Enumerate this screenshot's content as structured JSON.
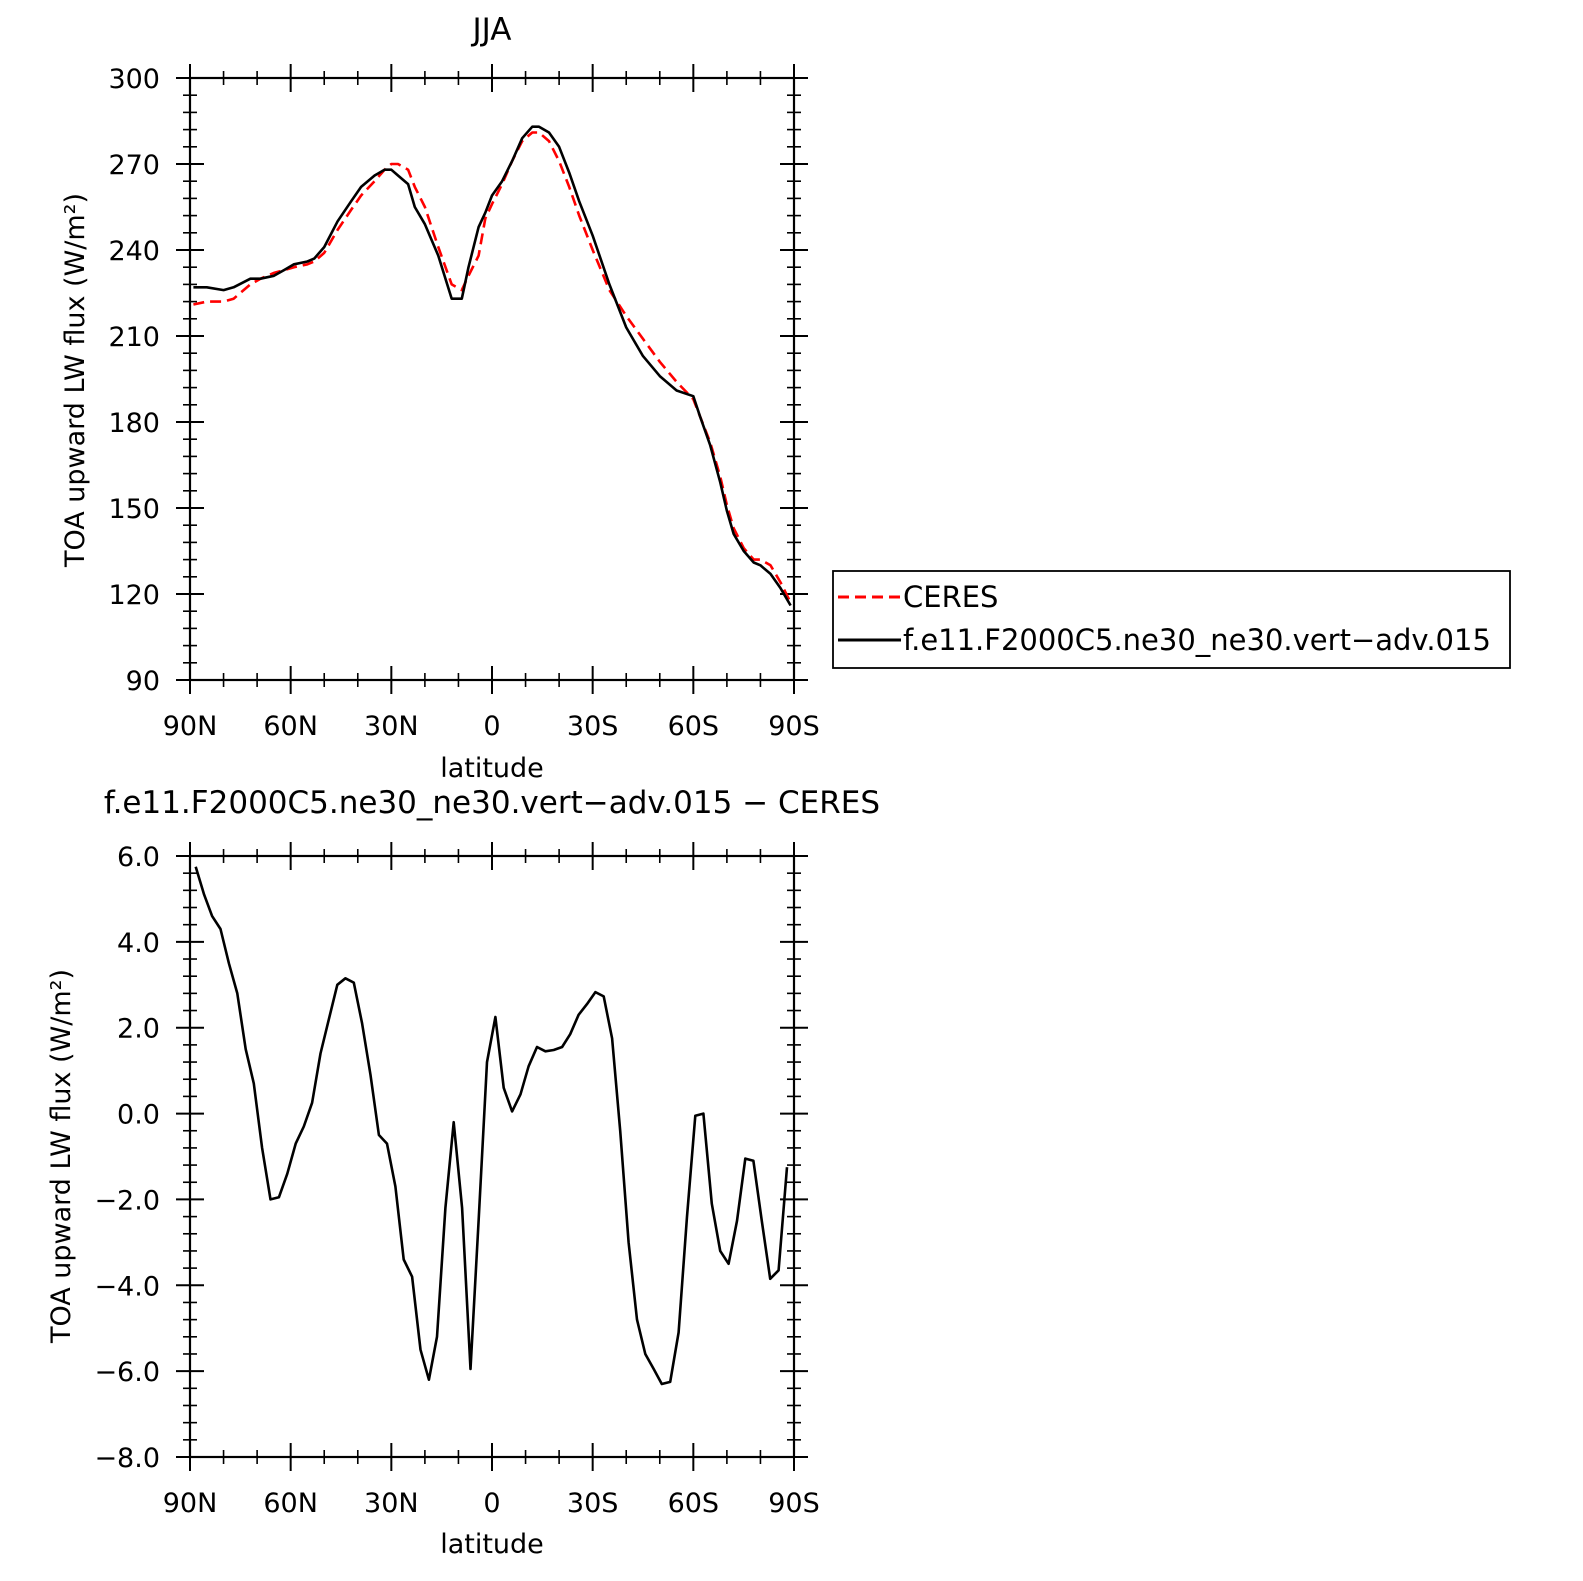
{
  "chart_data": [
    {
      "type": "line",
      "title": "JJA",
      "xlabel": "latitude",
      "ylabel": "TOA upward LW flux (W/m²)",
      "xlim": [
        90,
        -90
      ],
      "ylim": [
        90,
        300
      ],
      "x_ticks": [
        {
          "value": 90,
          "label": "90N"
        },
        {
          "value": 60,
          "label": "60N"
        },
        {
          "value": 30,
          "label": "30N"
        },
        {
          "value": 0,
          "label": "0"
        },
        {
          "value": -30,
          "label": "30S"
        },
        {
          "value": -60,
          "label": "60S"
        },
        {
          "value": -90,
          "label": "90S"
        }
      ],
      "y_ticks": [
        {
          "value": 300,
          "label": "300"
        },
        {
          "value": 270,
          "label": "270"
        },
        {
          "value": 240,
          "label": "240"
        },
        {
          "value": 210,
          "label": "210"
        },
        {
          "value": 180,
          "label": "180"
        },
        {
          "value": 150,
          "label": "150"
        },
        {
          "value": 120,
          "label": "120"
        },
        {
          "value": 90,
          "label": "90"
        }
      ],
      "legend": {
        "placement": "right"
      },
      "series": [
        {
          "name": "CERES",
          "color": "#ff0000",
          "style": "dashed",
          "x": [
            89,
            85,
            80,
            77,
            72,
            69,
            65,
            62,
            59,
            55,
            53,
            50,
            46,
            42,
            39,
            35,
            32,
            30,
            28,
            25,
            23,
            20,
            16,
            12,
            9,
            7,
            4,
            2,
            0,
            -3,
            -6,
            -9,
            -12,
            -14,
            -17,
            -20,
            -23,
            -26,
            -30,
            -35,
            -40,
            -45,
            -50,
            -55,
            -60,
            -62,
            -65,
            -68,
            -70,
            -72,
            -75,
            -78,
            -80,
            -83,
            -86,
            -89
          ],
          "y": [
            221,
            222,
            222,
            223,
            228,
            230,
            232,
            233,
            234,
            235,
            236,
            239,
            247,
            254,
            259,
            264,
            268,
            270,
            270,
            268,
            262,
            255,
            241,
            228,
            226,
            231,
            238,
            251,
            256,
            263,
            271,
            278,
            281,
            281,
            278,
            271,
            262,
            252,
            240,
            226,
            217,
            209,
            201,
            194,
            188,
            182,
            173,
            161,
            151,
            143,
            136,
            132,
            132,
            130,
            124,
            117
          ]
        },
        {
          "name": "f.e11.F2000C5.ne30_ne30.vert−adv.015",
          "color": "#000000",
          "style": "solid",
          "x": [
            89,
            85,
            80,
            77,
            72,
            69,
            65,
            62,
            59,
            55,
            53,
            50,
            46,
            42,
            39,
            35,
            32,
            30,
            28,
            25,
            23,
            20,
            16,
            12,
            9,
            7,
            4,
            2,
            0,
            -3,
            -6,
            -9,
            -12,
            -14,
            -17,
            -20,
            -23,
            -26,
            -30,
            -35,
            -40,
            -45,
            -50,
            -55,
            -60,
            -62,
            -65,
            -68,
            -70,
            -72,
            -75,
            -78,
            -80,
            -83,
            -86,
            -89
          ],
          "y": [
            227,
            227,
            226,
            227,
            230,
            230,
            231,
            233,
            235,
            236,
            237,
            241,
            250,
            257,
            262,
            266,
            268,
            268,
            266,
            263,
            255,
            249,
            238,
            223,
            223,
            234,
            248,
            253,
            259,
            264,
            271,
            279,
            283,
            283,
            281,
            276,
            267,
            257,
            245,
            228,
            213,
            203,
            196,
            191,
            189,
            182,
            172,
            159,
            149,
            141,
            135,
            131,
            130,
            127,
            122,
            116
          ]
        }
      ]
    },
    {
      "type": "line",
      "title": "f.e11.F2000C5.ne30_ne30.vert−adv.015 − CERES",
      "xlabel": "latitude",
      "ylabel": "TOA upward LW flux (W/m²)",
      "xlim": [
        90,
        -90
      ],
      "ylim": [
        -8,
        6
      ],
      "x_ticks": [
        {
          "value": 90,
          "label": "90N"
        },
        {
          "value": 60,
          "label": "60N"
        },
        {
          "value": 30,
          "label": "30N"
        },
        {
          "value": 0,
          "label": "0"
        },
        {
          "value": -30,
          "label": "30S"
        },
        {
          "value": -60,
          "label": "60S"
        },
        {
          "value": -90,
          "label": "90S"
        }
      ],
      "y_ticks": [
        {
          "value": 6,
          "label": "6.0"
        },
        {
          "value": 4,
          "label": "4.0"
        },
        {
          "value": 2,
          "label": "2.0"
        },
        {
          "value": 0,
          "label": "0.0"
        },
        {
          "value": -2,
          "label": "−2.0"
        },
        {
          "value": -4,
          "label": "−4.0"
        },
        {
          "value": -6,
          "label": "−6.0"
        },
        {
          "value": -8,
          "label": "−8.0"
        }
      ],
      "series": [
        {
          "color": "#000000",
          "style": "solid",
          "x": [
            88.3,
            85.8,
            83.4,
            80.9,
            78.4,
            75.9,
            73.4,
            71.0,
            68.5,
            66.0,
            63.5,
            61.0,
            58.5,
            56.1,
            53.6,
            51.1,
            48.6,
            46.1,
            43.7,
            41.2,
            38.7,
            36.2,
            33.7,
            31.3,
            28.8,
            26.3,
            23.8,
            21.3,
            18.8,
            16.4,
            13.9,
            11.4,
            8.9,
            6.4,
            4.0,
            1.5,
            -1.0,
            -3.5,
            -6.0,
            -8.5,
            -10.9,
            -13.4,
            -15.9,
            -18.4,
            -20.9,
            -23.3,
            -25.8,
            -28.3,
            -30.8,
            -33.3,
            -35.8,
            -38.2,
            -40.7,
            -43.2,
            -45.7,
            -48.2,
            -50.6,
            -53.1,
            -55.6,
            -58.1,
            -60.6,
            -63.0,
            -65.5,
            -68.0,
            -70.5,
            -73.0,
            -75.5,
            -77.9,
            -80.4,
            -82.9,
            -85.4,
            -87.9
          ],
          "y": [
            5.75,
            5.1,
            4.6,
            4.3,
            3.5,
            2.8,
            1.5,
            0.7,
            -0.8,
            -2.0,
            -1.95,
            -1.4,
            -0.7,
            -0.3,
            0.25,
            1.4,
            2.2,
            3.0,
            3.15,
            3.05,
            2.1,
            0.9,
            -0.5,
            -0.7,
            -1.7,
            -3.4,
            -3.8,
            -5.5,
            -6.2,
            -5.2,
            -2.2,
            -0.2,
            -2.2,
            -5.95,
            -2.5,
            1.2,
            2.25,
            0.6,
            0.05,
            0.45,
            1.1,
            1.55,
            1.45,
            1.48,
            1.55,
            1.85,
            2.3,
            2.55,
            2.83,
            2.73,
            1.75,
            -0.4,
            -3.0,
            -4.8,
            -5.6,
            -5.95,
            -6.3,
            -6.25,
            -5.1,
            -2.4,
            -0.05,
            0.0,
            -2.1,
            -3.2,
            -3.5,
            -2.5,
            -1.05,
            -1.1,
            -2.5,
            -3.85,
            -3.65,
            -1.25
          ]
        }
      ]
    }
  ]
}
